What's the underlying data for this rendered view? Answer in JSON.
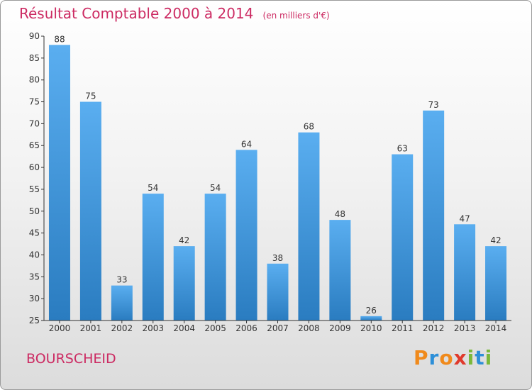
{
  "title": "Résultat Comptable 2000 à 2014",
  "subtitle": "(en milliers d'€)",
  "commune": "BOURSCHEID",
  "logo": {
    "letters": [
      "P",
      "r",
      "o",
      "x",
      "i",
      "t",
      "i"
    ],
    "colors": [
      "#f08a1c",
      "#2d8fd8",
      "#f08a1c",
      "#e03a2c",
      "#7ab83a",
      "#2d8fd8",
      "#7ab83a"
    ]
  },
  "colors": {
    "title": "#cc2a62",
    "bar_top": "#5aaef0",
    "bar_bottom": "#2a7cc0",
    "axis": "#333333"
  },
  "chart_data": {
    "type": "bar",
    "categories": [
      "2000",
      "2001",
      "2002",
      "2003",
      "2004",
      "2005",
      "2006",
      "2007",
      "2008",
      "2009",
      "2010",
      "2011",
      "2012",
      "2013",
      "2014"
    ],
    "values": [
      88,
      75,
      33,
      54,
      42,
      54,
      64,
      38,
      68,
      48,
      26,
      63,
      73,
      47,
      42
    ],
    "ylim": [
      25,
      90
    ],
    "yticks": [
      25,
      30,
      35,
      40,
      45,
      50,
      55,
      60,
      65,
      70,
      75,
      80,
      85,
      90
    ],
    "grid": false,
    "legend": "none"
  }
}
